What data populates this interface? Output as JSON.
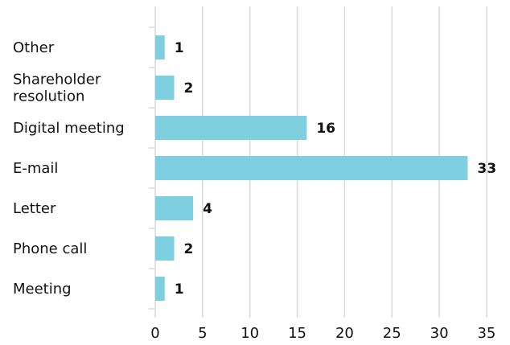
{
  "chart_data": {
    "type": "bar",
    "orientation": "horizontal",
    "categories": [
      "Meeting",
      "Phone call",
      "Letter",
      "E-mail",
      "Digital meeting",
      "Shareholder resolution",
      "Other"
    ],
    "category_lines": [
      [
        "Meeting"
      ],
      [
        "Phone call"
      ],
      [
        "Letter"
      ],
      [
        "E-mail"
      ],
      [
        "Digital meeting"
      ],
      [
        "Shareholder",
        "resolution"
      ],
      [
        "Other"
      ]
    ],
    "values": [
      1,
      2,
      4,
      33,
      16,
      2,
      1
    ],
    "title": "",
    "xlabel": "",
    "ylabel": "",
    "xlim": [
      0,
      35
    ],
    "x_ticks": [
      0,
      5,
      10,
      15,
      20,
      25,
      30,
      35
    ],
    "grid": true,
    "legend": "none",
    "bar_color": "#7ecfdf"
  }
}
